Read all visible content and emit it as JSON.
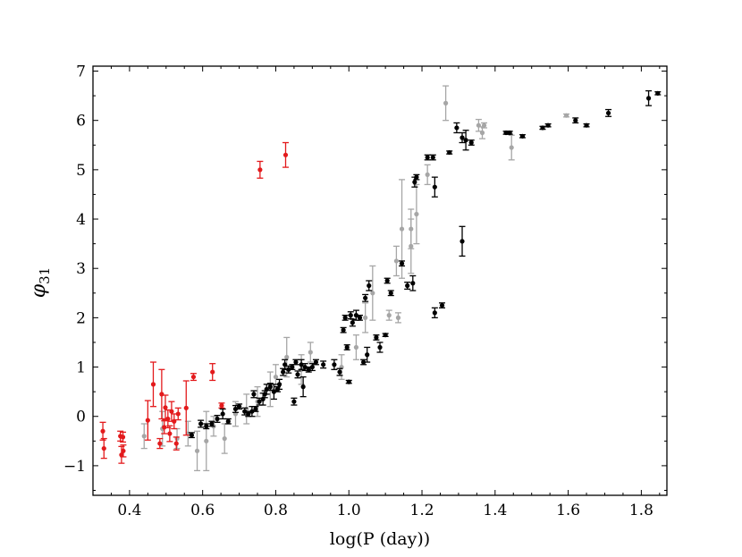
{
  "chart_data": {
    "type": "scatter",
    "title": "",
    "xlabel": "log(P (day))",
    "ylabel": "φ31",
    "xlim": [
      0.3,
      1.87
    ],
    "ylim": [
      -1.6,
      7.1
    ],
    "xticks": [
      "0.4",
      "0.6",
      "0.8",
      "1.0",
      "1.2",
      "1.4",
      "1.6",
      "1.8"
    ],
    "yticks": [
      "−1",
      "0",
      "1",
      "2",
      "3",
      "4",
      "5",
      "6",
      "7"
    ],
    "grid": false,
    "legend": "none",
    "colors": {
      "red": "#e31a1c",
      "gray": "#a6a6a6",
      "black": "#000000"
    },
    "series": [
      {
        "color": "red",
        "points": [
          {
            "x": 0.327,
            "y": -0.3,
            "err": 0.18
          },
          {
            "x": 0.33,
            "y": -0.65,
            "err": 0.2
          },
          {
            "x": 0.375,
            "y": -0.4,
            "err": 0.1
          },
          {
            "x": 0.378,
            "y": -0.78,
            "err": 0.17
          },
          {
            "x": 0.382,
            "y": -0.42,
            "err": 0.1
          },
          {
            "x": 0.383,
            "y": -0.7,
            "err": 0.12
          },
          {
            "x": 0.45,
            "y": -0.08,
            "err": 0.4
          },
          {
            "x": 0.465,
            "y": 0.65,
            "err": 0.45
          },
          {
            "x": 0.483,
            "y": -0.55,
            "err": 0.1
          },
          {
            "x": 0.488,
            "y": 0.45,
            "err": 0.5
          },
          {
            "x": 0.495,
            "y": -0.22,
            "err": 0.13
          },
          {
            "x": 0.498,
            "y": 0.18,
            "err": 0.25
          },
          {
            "x": 0.505,
            "y": -0.05,
            "err": 0.18
          },
          {
            "x": 0.51,
            "y": -0.35,
            "err": 0.16
          },
          {
            "x": 0.515,
            "y": 0.1,
            "err": 0.2
          },
          {
            "x": 0.522,
            "y": -0.1,
            "err": 0.15
          },
          {
            "x": 0.528,
            "y": -0.55,
            "err": 0.13
          },
          {
            "x": 0.533,
            "y": 0.05,
            "err": 0.12
          },
          {
            "x": 0.555,
            "y": 0.17,
            "err": 0.55
          },
          {
            "x": 0.575,
            "y": 0.8,
            "err": 0.07
          },
          {
            "x": 0.627,
            "y": 0.9,
            "err": 0.17
          },
          {
            "x": 0.652,
            "y": 0.22,
            "err": 0.05
          },
          {
            "x": 0.757,
            "y": 5.0,
            "err": 0.17
          },
          {
            "x": 0.827,
            "y": 5.3,
            "err": 0.25
          }
        ]
      },
      {
        "color": "gray",
        "points": [
          {
            "x": 0.44,
            "y": -0.4,
            "err": 0.25
          },
          {
            "x": 0.49,
            "y": -0.25,
            "err": 0.35
          },
          {
            "x": 0.53,
            "y": -0.45,
            "err": 0.2
          },
          {
            "x": 0.56,
            "y": -0.35,
            "err": 0.25
          },
          {
            "x": 0.585,
            "y": -0.7,
            "err": 0.4
          },
          {
            "x": 0.61,
            "y": -0.5,
            "err": 0.6
          },
          {
            "x": 0.63,
            "y": -0.2,
            "err": 0.2
          },
          {
            "x": 0.66,
            "y": -0.45,
            "err": 0.3
          },
          {
            "x": 0.69,
            "y": 0.05,
            "err": 0.25
          },
          {
            "x": 0.72,
            "y": 0.15,
            "err": 0.3
          },
          {
            "x": 0.75,
            "y": 0.3,
            "err": 0.3
          },
          {
            "x": 0.785,
            "y": 0.55,
            "err": 0.35
          },
          {
            "x": 0.8,
            "y": 0.8,
            "err": 0.25
          },
          {
            "x": 0.83,
            "y": 1.2,
            "err": 0.4
          },
          {
            "x": 0.87,
            "y": 0.95,
            "err": 0.3
          },
          {
            "x": 0.895,
            "y": 1.3,
            "err": 0.2
          },
          {
            "x": 0.98,
            "y": 1.0,
            "err": 0.25
          },
          {
            "x": 1.02,
            "y": 1.4,
            "err": 0.25
          },
          {
            "x": 1.045,
            "y": 2.0,
            "err": 0.3
          },
          {
            "x": 1.065,
            "y": 2.5,
            "err": 0.55
          },
          {
            "x": 1.11,
            "y": 2.05,
            "err": 0.1
          },
          {
            "x": 1.135,
            "y": 2.0,
            "err": 0.1
          },
          {
            "x": 1.13,
            "y": 3.15,
            "err": 0.3
          },
          {
            "x": 1.145,
            "y": 3.8,
            "err": 1.0
          },
          {
            "x": 1.17,
            "y": 3.8,
            "err": 0.4
          },
          {
            "x": 1.17,
            "y": 3.45,
            "err": 0.55
          },
          {
            "x": 1.185,
            "y": 4.1,
            "err": 0.6
          },
          {
            "x": 1.215,
            "y": 4.9,
            "err": 0.2
          },
          {
            "x": 1.265,
            "y": 6.35,
            "err": 0.35
          },
          {
            "x": 1.355,
            "y": 5.9,
            "err": 0.12
          },
          {
            "x": 1.365,
            "y": 5.75,
            "err": 0.12
          },
          {
            "x": 1.37,
            "y": 5.9,
            "err": 0.05
          },
          {
            "x": 1.445,
            "y": 5.45,
            "err": 0.25
          },
          {
            "x": 1.595,
            "y": 6.1,
            "err": 0.03
          }
        ]
      },
      {
        "color": "black",
        "points": [
          {
            "x": 0.57,
            "y": -0.38,
            "err": 0.05
          },
          {
            "x": 0.595,
            "y": -0.15,
            "err": 0.07
          },
          {
            "x": 0.61,
            "y": -0.2,
            "err": 0.05
          },
          {
            "x": 0.625,
            "y": -0.15,
            "err": 0.05
          },
          {
            "x": 0.64,
            "y": -0.05,
            "err": 0.07
          },
          {
            "x": 0.655,
            "y": 0.05,
            "err": 0.1
          },
          {
            "x": 0.67,
            "y": -0.1,
            "err": 0.05
          },
          {
            "x": 0.69,
            "y": 0.15,
            "err": 0.07
          },
          {
            "x": 0.7,
            "y": 0.2,
            "err": 0.05
          },
          {
            "x": 0.715,
            "y": 0.1,
            "err": 0.07
          },
          {
            "x": 0.725,
            "y": 0.05,
            "err": 0.05
          },
          {
            "x": 0.735,
            "y": 0.1,
            "err": 0.1
          },
          {
            "x": 0.745,
            "y": 0.15,
            "err": 0.05
          },
          {
            "x": 0.755,
            "y": 0.3,
            "err": 0.07
          },
          {
            "x": 0.74,
            "y": 0.45,
            "err": 0.07
          },
          {
            "x": 0.765,
            "y": 0.35,
            "err": 0.12
          },
          {
            "x": 0.77,
            "y": 0.45,
            "err": 0.07
          },
          {
            "x": 0.775,
            "y": 0.55,
            "err": 0.1
          },
          {
            "x": 0.785,
            "y": 0.6,
            "err": 0.07
          },
          {
            "x": 0.795,
            "y": 0.5,
            "err": 0.15
          },
          {
            "x": 0.805,
            "y": 0.55,
            "err": 0.05
          },
          {
            "x": 0.81,
            "y": 0.65,
            "err": 0.1
          },
          {
            "x": 0.82,
            "y": 0.9,
            "err": 0.07
          },
          {
            "x": 0.825,
            "y": 1.05,
            "err": 0.1
          },
          {
            "x": 0.835,
            "y": 0.95,
            "err": 0.07
          },
          {
            "x": 0.845,
            "y": 1.0,
            "err": 0.05
          },
          {
            "x": 0.85,
            "y": 0.3,
            "err": 0.07
          },
          {
            "x": 0.855,
            "y": 1.1,
            "err": 0.05
          },
          {
            "x": 0.86,
            "y": 0.85,
            "err": 0.07
          },
          {
            "x": 0.87,
            "y": 1.05,
            "err": 0.1
          },
          {
            "x": 0.875,
            "y": 0.6,
            "err": 0.2
          },
          {
            "x": 0.88,
            "y": 1.0,
            "err": 0.07
          },
          {
            "x": 0.89,
            "y": 0.95,
            "err": 0.05
          },
          {
            "x": 0.9,
            "y": 1.0,
            "err": 0.07
          },
          {
            "x": 0.91,
            "y": 1.1,
            "err": 0.05
          },
          {
            "x": 0.93,
            "y": 1.05,
            "err": 0.07
          },
          {
            "x": 0.96,
            "y": 1.05,
            "err": 0.1
          },
          {
            "x": 0.975,
            "y": 0.9,
            "err": 0.07
          },
          {
            "x": 0.985,
            "y": 1.75,
            "err": 0.05
          },
          {
            "x": 0.99,
            "y": 2.0,
            "err": 0.05
          },
          {
            "x": 0.995,
            "y": 1.4,
            "err": 0.05
          },
          {
            "x": 1.0,
            "y": 0.7,
            "err": 0.03
          },
          {
            "x": 1.005,
            "y": 2.05,
            "err": 0.07
          },
          {
            "x": 1.01,
            "y": 1.9,
            "err": 0.07
          },
          {
            "x": 1.02,
            "y": 2.05,
            "err": 0.1
          },
          {
            "x": 1.03,
            "y": 2.0,
            "err": 0.05
          },
          {
            "x": 1.04,
            "y": 1.1,
            "err": 0.05
          },
          {
            "x": 1.045,
            "y": 2.4,
            "err": 0.07
          },
          {
            "x": 1.05,
            "y": 1.25,
            "err": 0.15
          },
          {
            "x": 1.055,
            "y": 2.65,
            "err": 0.1
          },
          {
            "x": 1.075,
            "y": 1.6,
            "err": 0.05
          },
          {
            "x": 1.085,
            "y": 1.4,
            "err": 0.1
          },
          {
            "x": 1.1,
            "y": 1.65,
            "err": 0.03
          },
          {
            "x": 1.105,
            "y": 2.75,
            "err": 0.05
          },
          {
            "x": 1.115,
            "y": 2.5,
            "err": 0.05
          },
          {
            "x": 1.145,
            "y": 3.1,
            "err": 0.05
          },
          {
            "x": 1.16,
            "y": 2.65,
            "err": 0.07
          },
          {
            "x": 1.175,
            "y": 2.7,
            "err": 0.15
          },
          {
            "x": 1.18,
            "y": 4.75,
            "err": 0.1
          },
          {
            "x": 1.185,
            "y": 4.85,
            "err": 0.05
          },
          {
            "x": 1.215,
            "y": 5.25,
            "err": 0.05
          },
          {
            "x": 1.23,
            "y": 5.25,
            "err": 0.05
          },
          {
            "x": 1.235,
            "y": 4.65,
            "err": 0.2
          },
          {
            "x": 1.235,
            "y": 2.1,
            "err": 0.1
          },
          {
            "x": 1.255,
            "y": 2.25,
            "err": 0.05
          },
          {
            "x": 1.275,
            "y": 5.35,
            "err": 0.03
          },
          {
            "x": 1.295,
            "y": 5.85,
            "err": 0.1
          },
          {
            "x": 1.31,
            "y": 5.65,
            "err": 0.1
          },
          {
            "x": 1.31,
            "y": 3.55,
            "err": 0.3
          },
          {
            "x": 1.32,
            "y": 5.6,
            "err": 0.2
          },
          {
            "x": 1.335,
            "y": 5.55,
            "err": 0.05
          },
          {
            "x": 1.43,
            "y": 5.75,
            "err": 0.03
          },
          {
            "x": 1.44,
            "y": 5.75,
            "err": 0.03
          },
          {
            "x": 1.475,
            "y": 5.68,
            "err": 0.03
          },
          {
            "x": 1.53,
            "y": 5.85,
            "err": 0.03
          },
          {
            "x": 1.545,
            "y": 5.9,
            "err": 0.03
          },
          {
            "x": 1.62,
            "y": 6.0,
            "err": 0.05
          },
          {
            "x": 1.65,
            "y": 5.9,
            "err": 0.03
          },
          {
            "x": 1.71,
            "y": 6.15,
            "err": 0.07
          },
          {
            "x": 1.82,
            "y": 6.45,
            "err": 0.15
          },
          {
            "x": 1.845,
            "y": 6.55,
            "err": 0.03
          }
        ]
      }
    ]
  }
}
